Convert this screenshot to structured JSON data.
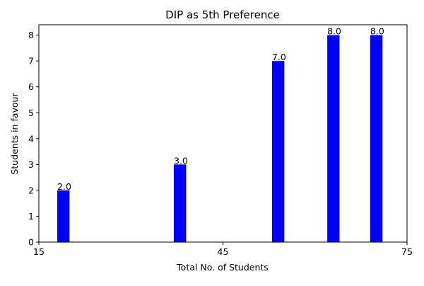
{
  "chart_data": {
    "type": "bar",
    "title": "DIP as 5th Preference",
    "xlabel": "Total No. of Students",
    "ylabel": "Students in favour",
    "x": [
      19,
      38,
      54,
      63,
      70
    ],
    "values": [
      2.0,
      3.0,
      7.0,
      8.0,
      8.0
    ],
    "data_labels": [
      "2.0",
      "3.0",
      "7.0",
      "8.0",
      "8.0"
    ],
    "xlim": [
      15,
      75
    ],
    "ylim": [
      0,
      8.4
    ],
    "xticks": [
      15,
      45,
      75
    ],
    "xtick_labels": [
      "15",
      "45",
      "75"
    ],
    "yticks": [
      0,
      1,
      2,
      3,
      4,
      5,
      6,
      7,
      8
    ],
    "ytick_labels": [
      "0",
      "1",
      "2",
      "3",
      "4",
      "5",
      "6",
      "7",
      "8"
    ],
    "bar_width": 2,
    "grid": false,
    "legend": "none",
    "bar_color": "#0000ff"
  }
}
